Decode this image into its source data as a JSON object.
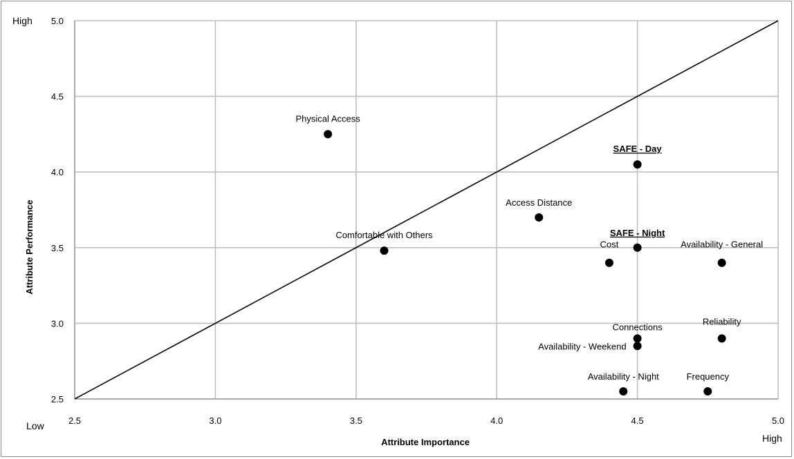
{
  "chart_data": {
    "type": "scatter",
    "xlabel": "Attribute Importance",
    "ylabel": "Attribute Performance",
    "xlim": [
      2.5,
      5.0
    ],
    "ylim": [
      2.5,
      5.0
    ],
    "x_ticks": [
      "2.5",
      "3.0",
      "3.5",
      "4.0",
      "4.5",
      "5.0"
    ],
    "y_ticks": [
      "2.5",
      "3.0",
      "3.5",
      "4.0",
      "4.5",
      "5.0"
    ],
    "grid": true,
    "reference_line": {
      "from": [
        2.5,
        2.5
      ],
      "to": [
        5.0,
        5.0
      ]
    },
    "corner_labels": {
      "y_high": "High",
      "x_low": "Low",
      "x_high": "High"
    },
    "points": [
      {
        "label": "Physical Access",
        "x": 3.4,
        "y": 4.25,
        "emphasis": false
      },
      {
        "label": "SAFE - Day",
        "x": 4.5,
        "y": 4.05,
        "emphasis": true
      },
      {
        "label": "Access Distance",
        "x": 4.15,
        "y": 3.7,
        "emphasis": false
      },
      {
        "label": "Comfortable with Others",
        "x": 3.6,
        "y": 3.48,
        "emphasis": false
      },
      {
        "label": "SAFE - Night",
        "x": 4.5,
        "y": 3.5,
        "emphasis": true
      },
      {
        "label": "Cost",
        "x": 4.4,
        "y": 3.4,
        "emphasis": false
      },
      {
        "label": "Availability - General",
        "x": 4.8,
        "y": 3.4,
        "emphasis": false
      },
      {
        "label": "Connections",
        "x": 4.5,
        "y": 2.9,
        "emphasis": false
      },
      {
        "label": "Reliability",
        "x": 4.8,
        "y": 2.9,
        "emphasis": false
      },
      {
        "label": "Availability - Weekend",
        "x": 4.5,
        "y": 2.85,
        "emphasis": false
      },
      {
        "label": "Availability - Night",
        "x": 4.45,
        "y": 2.55,
        "emphasis": false
      },
      {
        "label": "Frequency",
        "x": 4.75,
        "y": 2.55,
        "emphasis": false
      }
    ]
  }
}
